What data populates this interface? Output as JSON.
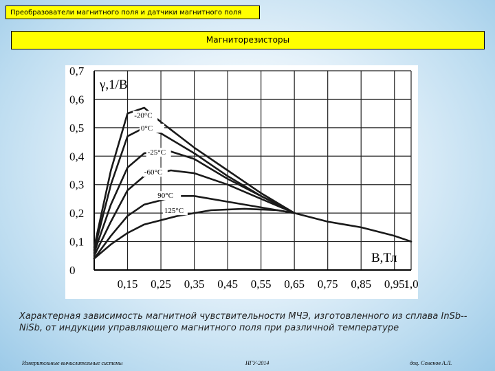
{
  "header": {
    "subject": "Преобразователи магнитного поля и датчики магнитного поля"
  },
  "slide": {
    "title": "Магниторезисторы"
  },
  "caption": "Характерная зависимость магнитной чувствительности МЧЭ, изготовленного из сплава InSb--NiSb, от индукции управляющего магнитного поля при различной температуре",
  "footer": {
    "left": "Измерительные вычислительные системы",
    "center": "НГУ-2014",
    "right": "доц. Семенов А.Л."
  },
  "colors": {
    "band": "#ffff00",
    "curve": "#1a1a1a",
    "grid": "#222222"
  },
  "chart_data": {
    "type": "line",
    "ylabel": "γ,1/В",
    "xlabel": "B,Тл",
    "xlim": [
      0.05,
      1.0
    ],
    "ylim": [
      0,
      0.7
    ],
    "x_ticks": [
      "0,15",
      "0,25",
      "0,35",
      "0,45",
      "0,55",
      "0,65",
      "0,75",
      "0,85",
      "0,95",
      "1,0"
    ],
    "y_ticks": [
      "0",
      "0,1",
      "0,2",
      "0,3",
      "0,4",
      "0,5",
      "0,6",
      "0,7"
    ],
    "grid": true,
    "series": [
      {
        "name": "-20°C",
        "points": [
          [
            0.05,
            0.08
          ],
          [
            0.1,
            0.35
          ],
          [
            0.15,
            0.55
          ],
          [
            0.2,
            0.57
          ],
          [
            0.25,
            0.52
          ],
          [
            0.35,
            0.43
          ],
          [
            0.45,
            0.35
          ],
          [
            0.55,
            0.27
          ],
          [
            0.65,
            0.2
          ]
        ]
      },
      {
        "name": "0°C",
        "points": [
          [
            0.05,
            0.07
          ],
          [
            0.1,
            0.3
          ],
          [
            0.15,
            0.47
          ],
          [
            0.2,
            0.5
          ],
          [
            0.25,
            0.48
          ],
          [
            0.35,
            0.41
          ],
          [
            0.45,
            0.33
          ],
          [
            0.55,
            0.26
          ],
          [
            0.65,
            0.2
          ]
        ]
      },
      {
        "name": "-25°C",
        "points": [
          [
            0.05,
            0.06
          ],
          [
            0.1,
            0.23
          ],
          [
            0.15,
            0.36
          ],
          [
            0.2,
            0.41
          ],
          [
            0.27,
            0.42
          ],
          [
            0.35,
            0.39
          ],
          [
            0.45,
            0.32
          ],
          [
            0.55,
            0.26
          ],
          [
            0.65,
            0.2
          ]
        ]
      },
      {
        "name": "-60°C",
        "points": [
          [
            0.05,
            0.05
          ],
          [
            0.1,
            0.17
          ],
          [
            0.15,
            0.28
          ],
          [
            0.2,
            0.33
          ],
          [
            0.28,
            0.35
          ],
          [
            0.35,
            0.34
          ],
          [
            0.45,
            0.3
          ],
          [
            0.55,
            0.25
          ],
          [
            0.65,
            0.2
          ]
        ]
      },
      {
        "name": "90°C",
        "points": [
          [
            0.05,
            0.04
          ],
          [
            0.1,
            0.12
          ],
          [
            0.15,
            0.19
          ],
          [
            0.2,
            0.23
          ],
          [
            0.3,
            0.26
          ],
          [
            0.35,
            0.26
          ],
          [
            0.45,
            0.24
          ],
          [
            0.55,
            0.22
          ],
          [
            0.65,
            0.2
          ]
        ]
      },
      {
        "name": "125°C",
        "points": [
          [
            0.05,
            0.04
          ],
          [
            0.1,
            0.09
          ],
          [
            0.15,
            0.13
          ],
          [
            0.2,
            0.16
          ],
          [
            0.3,
            0.19
          ],
          [
            0.4,
            0.21
          ],
          [
            0.5,
            0.215
          ],
          [
            0.6,
            0.21
          ],
          [
            0.65,
            0.2
          ],
          [
            0.75,
            0.17
          ],
          [
            0.85,
            0.15
          ],
          [
            0.95,
            0.12
          ],
          [
            1.0,
            0.1
          ]
        ]
      }
    ]
  }
}
